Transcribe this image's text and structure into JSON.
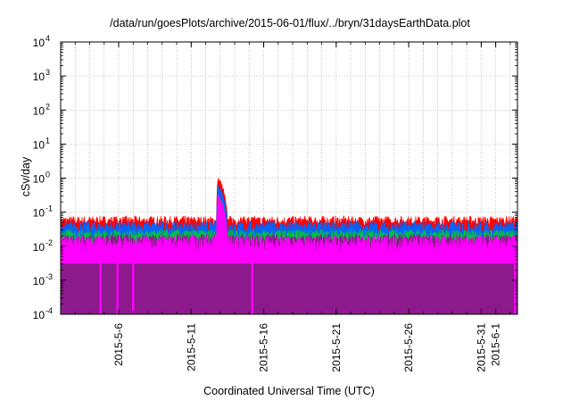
{
  "chart_data": {
    "type": "area",
    "title": "/data/run/goesPlots/archive/2015-06-01/flux/../bryn/31daysEarthData.plot",
    "xlabel": "Coordinated Universal Time (UTC)",
    "ylabel": "cSv/day",
    "y_scale": "log",
    "ylim": [
      0.0001,
      10000
    ],
    "xlim": [
      "2015-05-02",
      "2015-06-02T12:00"
    ],
    "grid": true,
    "y_ticks": [
      {
        "value": 0.0001,
        "base": "10",
        "exp": "-4"
      },
      {
        "value": 0.001,
        "base": "10",
        "exp": "-3"
      },
      {
        "value": 0.01,
        "base": "10",
        "exp": "-2"
      },
      {
        "value": 0.1,
        "base": "10",
        "exp": "-1"
      },
      {
        "value": 1,
        "base": "10",
        "exp": "0"
      },
      {
        "value": 10,
        "base": "10",
        "exp": "1"
      },
      {
        "value": 100,
        "base": "10",
        "exp": "2"
      },
      {
        "value": 1000,
        "base": "10",
        "exp": "3"
      },
      {
        "value": 10000,
        "base": "10",
        "exp": "4"
      }
    ],
    "x_ticks": [
      {
        "date": "2015-05-06",
        "label": "2015-5-6"
      },
      {
        "date": "2015-05-11",
        "label": "2015-5-11"
      },
      {
        "date": "2015-05-16",
        "label": "2015-5-16"
      },
      {
        "date": "2015-05-21",
        "label": "2015-5-21"
      },
      {
        "date": "2015-05-26",
        "label": "2015-5-26"
      },
      {
        "date": "2015-05-31",
        "label": "2015-5-31"
      },
      {
        "date": "2015-06-01",
        "label": "2015-6-1"
      }
    ],
    "series": [
      {
        "color": "#ff0000",
        "baseline": 0.055,
        "spread": 0.15
      },
      {
        "color": "#0066ff",
        "baseline": 0.035,
        "spread": 0.2
      },
      {
        "color": "#00c040",
        "baseline": 0.022,
        "spread": 0.15
      },
      {
        "color": "#8c1a8c",
        "baseline": 0.016,
        "spread": 0.15
      },
      {
        "color": "#ff00ff",
        "baseline": 0.012,
        "spread": 0.25,
        "floor": 0.0035
      }
    ],
    "event": {
      "start": "2015-05-12T18:00",
      "peak": "2015-05-12T20:00",
      "end": "2015-05-13T12:00",
      "peak_value": 0.95
    },
    "dropouts": [
      "2015-05-04T18:00",
      "2015-05-05T22:00",
      "2015-05-07T00:00",
      "2015-05-15T05:00",
      "2015-06-02T08:00"
    ],
    "dropout_value": 0.0001
  }
}
